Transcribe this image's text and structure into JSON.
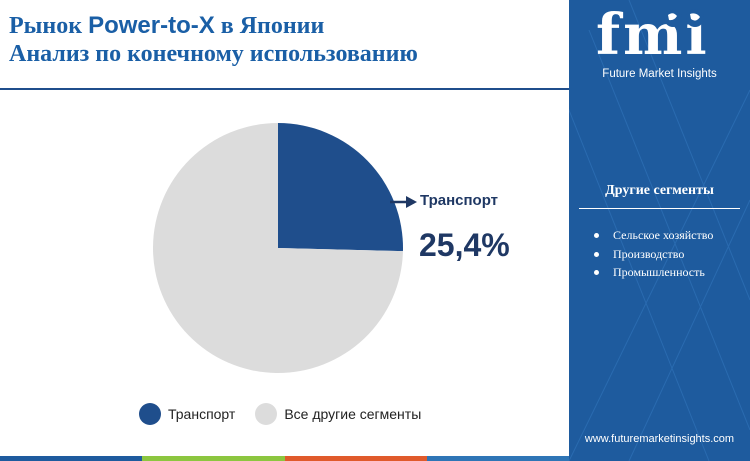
{
  "header": {
    "title_line1_pre": "Рынок ",
    "title_line1_brand": "Power-to-X",
    "title_line1_post": " в Японии",
    "title_line2": "Анализ по конечному использованию"
  },
  "sidebar": {
    "logo_text": "fmi",
    "logo_subtitle": "Future Market Insights",
    "heading": "Другие сегменты",
    "items": [
      "Сельское хозяйство",
      "Производство",
      "Промышленность"
    ],
    "url": "www.futuremarketinsights.com"
  },
  "chart_data": {
    "type": "pie",
    "title": "",
    "slices": [
      {
        "label": "Транспорт",
        "value": 25.4,
        "color": "#1f4e8c"
      },
      {
        "label": "Все другие сегменты",
        "value": 74.6,
        "color": "#dcdcdc"
      }
    ],
    "callout": {
      "label": "Транспорт",
      "value_text": "25,4%"
    },
    "legend": [
      "Транспорт",
      "Все другие сегменты"
    ],
    "legend_position": "bottom"
  },
  "colors": {
    "accent": "#1f4e8c",
    "sidebar_bg": "#1e5b9e",
    "title": "#1a5fa6",
    "bottom_bar": [
      "#1e5b9e",
      "#8cc63f",
      "#e05a2b",
      "#2e75b6"
    ]
  }
}
